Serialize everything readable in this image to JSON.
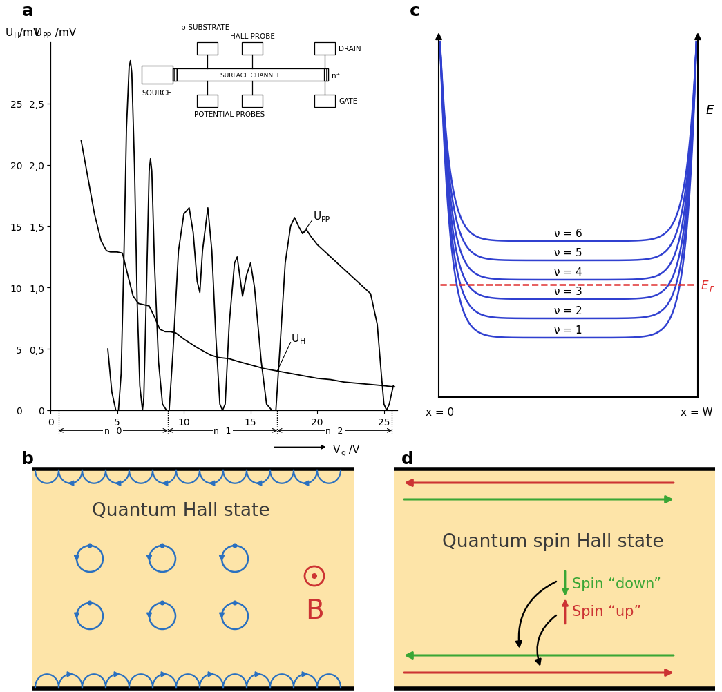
{
  "panel_labels": [
    "a",
    "b",
    "c",
    "d"
  ],
  "chart_data": {
    "type": "line",
    "grid": false,
    "ylabel": {
      "text": "U",
      "sub": "H",
      "after": "/mV"
    },
    "y2label": {
      "text": "U",
      "sub": "PP",
      "after": " /mV"
    },
    "xlabel": {
      "text": "V",
      "sub": "g",
      "after": " /V"
    },
    "xlim": [
      0,
      26
    ],
    "xticks": [
      0,
      5,
      10,
      15,
      20,
      25
    ],
    "ylim": [
      0,
      30
    ],
    "yticks": [
      0,
      5,
      10,
      15,
      20,
      25
    ],
    "y2lim": [
      0,
      3.0
    ],
    "y2ticks": [
      0,
      {
        "value": 0.5,
        "label": "0,5"
      },
      {
        "value": 1.0,
        "label": "1,0"
      },
      {
        "value": 1.5,
        "label": "1,5"
      },
      {
        "value": 2.0,
        "label": "2,0"
      },
      {
        "value": 2.5,
        "label": "2,5"
      }
    ],
    "series": [
      {
        "name": {
          "text": "U",
          "sub": "H"
        },
        "color": "#000000",
        "x": [
          2.3,
          2.8,
          3.3,
          3.8,
          4.2,
          4.5,
          5.0,
          5.4,
          5.8,
          6.2,
          6.6,
          7.0,
          7.4,
          7.8,
          8.2,
          8.6,
          9.0,
          9.4,
          10.0,
          11.0,
          12.0,
          12.6,
          13.4,
          14.0,
          15.0,
          16.0,
          17.0,
          18.0,
          19.0,
          20.0,
          21.0,
          22.0,
          23.0,
          24.0,
          25.0,
          25.8
        ],
        "values": [
          22.0,
          19.0,
          16.0,
          13.8,
          13.0,
          12.9,
          12.9,
          12.8,
          11.0,
          9.3,
          8.7,
          8.6,
          8.5,
          7.6,
          6.6,
          6.4,
          6.4,
          6.3,
          5.8,
          5.1,
          4.5,
          4.3,
          4.2,
          4.0,
          3.7,
          3.4,
          3.2,
          3.0,
          2.8,
          2.6,
          2.5,
          2.3,
          2.2,
          2.1,
          2.0,
          1.9
        ]
      },
      {
        "name": {
          "text": "U",
          "sub": "PP"
        },
        "color": "#000000",
        "axis": "y2",
        "x": [
          4.3,
          4.6,
          4.9,
          5.1,
          5.3,
          5.5,
          5.7,
          5.9,
          6.0,
          6.1,
          6.3,
          6.5,
          6.7,
          6.9,
          7.0,
          7.2,
          7.4,
          7.5,
          7.6,
          7.8,
          8.1,
          8.4,
          8.7,
          8.9,
          9.2,
          9.6,
          10.0,
          10.4,
          10.7,
          11.0,
          11.2,
          11.4,
          11.8,
          12.1,
          12.4,
          12.7,
          12.9,
          13.1,
          13.4,
          13.8,
          14.0,
          14.4,
          14.7,
          15.0,
          15.3,
          15.8,
          16.2,
          16.6,
          16.9,
          17.2,
          17.6,
          18.0,
          18.3,
          18.6,
          18.9,
          19.2,
          19.5,
          20.0,
          20.5,
          21.0,
          22.0,
          23.0,
          24.0,
          24.5,
          24.8,
          25.0,
          25.2,
          25.4,
          25.7
        ],
        "values": [
          0.5,
          0.15,
          0.0,
          0.0,
          0.3,
          1.2,
          2.3,
          2.8,
          2.85,
          2.75,
          2.0,
          0.9,
          0.2,
          0.0,
          0.1,
          1.0,
          1.95,
          2.05,
          1.95,
          1.2,
          0.4,
          0.05,
          0.0,
          0.0,
          0.5,
          1.3,
          1.6,
          1.65,
          1.45,
          1.05,
          0.96,
          1.3,
          1.65,
          1.3,
          0.6,
          0.05,
          0.0,
          0.05,
          0.7,
          1.2,
          1.25,
          0.93,
          1.1,
          1.2,
          1.0,
          0.4,
          0.05,
          0.0,
          0.0,
          0.5,
          1.2,
          1.5,
          1.57,
          1.5,
          1.44,
          1.47,
          1.42,
          1.35,
          1.3,
          1.25,
          1.15,
          1.05,
          0.95,
          0.7,
          0.3,
          0.05,
          0.0,
          0.05,
          0.2
        ]
      }
    ],
    "ranges": [
      {
        "label": "n=0",
        "from": 0.6,
        "to": 8.8
      },
      {
        "label": "n=1",
        "from": 8.8,
        "to": 17.0
      },
      {
        "label": "n=2",
        "from": 17.0,
        "to": 25.6
      }
    ]
  },
  "inset": {
    "substrate": "p-SUBSTRATE",
    "hall_probe": "HALL PROBE",
    "drain": "DRAIN",
    "surface_channel": "SURFACE CHANNEL",
    "n_plus": "n⁺",
    "source": "SOURCE",
    "gate": "GATE",
    "potential_probes": "POTENTIAL PROBES"
  },
  "panel_b": {
    "title": "Quantum Hall state",
    "field_label": "B"
  },
  "panel_c": {
    "level_labels": [
      "ν = 1",
      "ν = 2",
      "ν = 3",
      "ν = 4",
      "ν = 5",
      "ν = 6"
    ],
    "fermi_label": {
      "text": "E",
      "sub": "F"
    },
    "energy_label": "E",
    "left_label": "x = 0",
    "right_label": "x = W"
  },
  "panel_d": {
    "title": "Quantum spin Hall state",
    "spin_down": "Spin “down”",
    "spin_up": "Spin “up”"
  }
}
